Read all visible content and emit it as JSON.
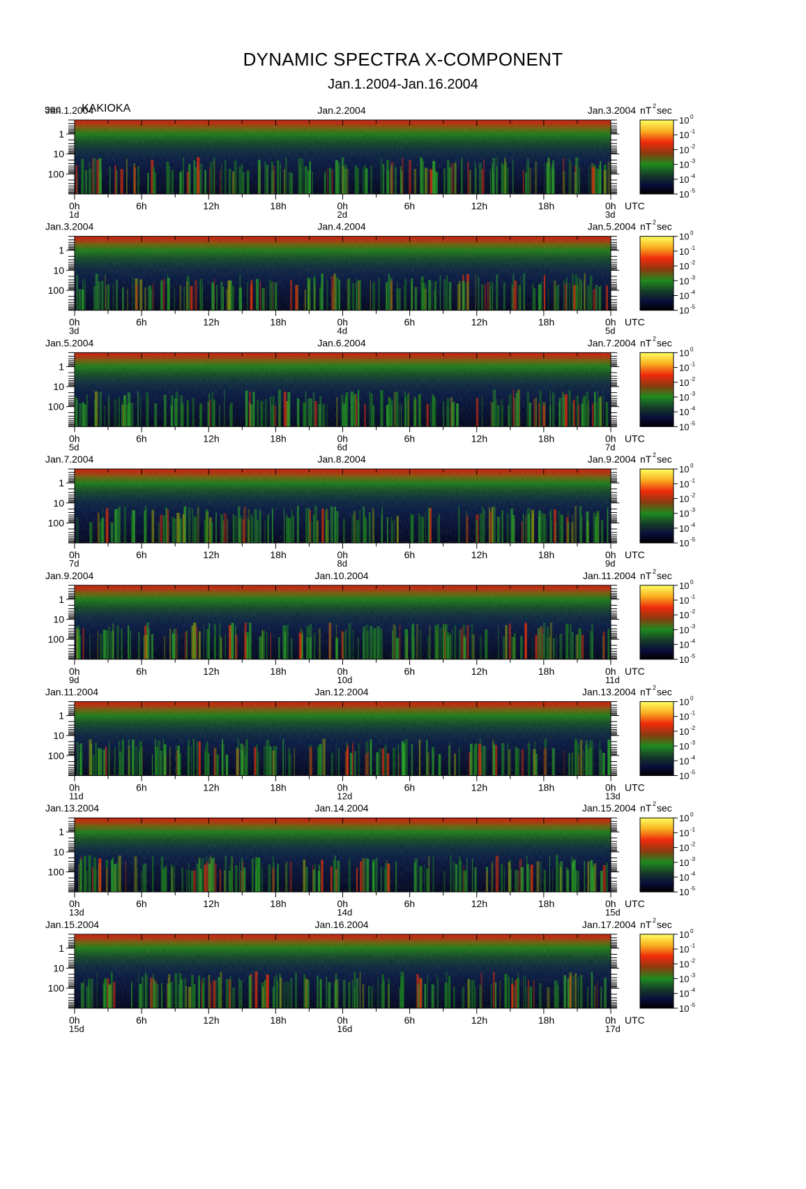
{
  "header": {
    "title": "DYNAMIC SPECTRA X-COMPONENT",
    "subtitle": "Jan.1.2004-Jan.16.2004",
    "unit": "sec",
    "station": "KAKIOKA"
  },
  "chart_data": {
    "type": "heatmap",
    "ylabel": "sec",
    "y_scale": "log",
    "ylim": [
      1000,
      0.2
    ],
    "y_ticks": [
      "1",
      "10",
      "100"
    ],
    "x_tick_labels": [
      "0h",
      "6h",
      "12h",
      "18h",
      "0h",
      "6h",
      "12h",
      "18h",
      "0h"
    ],
    "x_unit": "UTC",
    "colorbar": {
      "unit": "nT",
      "unit_exp": "2",
      "unit_suffix": "sec",
      "scale": "log",
      "range": [
        1e-05,
        1
      ],
      "ticks": [
        {
          "base": "10",
          "exp": "0"
        },
        {
          "base": "10",
          "exp": "-1"
        },
        {
          "base": "10",
          "exp": "-2"
        },
        {
          "base": "10",
          "exp": "-3"
        },
        {
          "base": "10",
          "exp": "-4"
        },
        {
          "base": "10",
          "exp": "-5"
        }
      ],
      "colors": [
        "#000000",
        "#0a0d3a",
        "#1a3a2a",
        "#1f8a1f",
        "#9a4a10",
        "#e0200c",
        "#f8a016",
        "#ffff60"
      ]
    },
    "panels": [
      {
        "date_left": "Jan.1.2004",
        "date_mid": "Jan.2.2004",
        "date_right": "Jan.3.2004",
        "day_start": "1d",
        "day_mid": "2d",
        "day_end": "3d"
      },
      {
        "date_left": "Jan.3.2004",
        "date_mid": "Jan.4.2004",
        "date_right": "Jan.5.2004",
        "day_start": "3d",
        "day_mid": "4d",
        "day_end": "5d"
      },
      {
        "date_left": "Jan.5.2004",
        "date_mid": "Jan.6.2004",
        "date_right": "Jan.7.2004",
        "day_start": "5d",
        "day_mid": "6d",
        "day_end": "7d"
      },
      {
        "date_left": "Jan.7.2004",
        "date_mid": "Jan.8.2004",
        "date_right": "Jan.9.2004",
        "day_start": "7d",
        "day_mid": "8d",
        "day_end": "9d"
      },
      {
        "date_left": "Jan.9.2004",
        "date_mid": "Jan.10.2004",
        "date_right": "Jan.11.2004",
        "day_start": "9d",
        "day_mid": "10d",
        "day_end": "11d"
      },
      {
        "date_left": "Jan.11.2004",
        "date_mid": "Jan.12.2004",
        "date_right": "Jan.13.2004",
        "day_start": "11d",
        "day_mid": "12d",
        "day_end": "13d"
      },
      {
        "date_left": "Jan.13.2004",
        "date_mid": "Jan.14.2004",
        "date_right": "Jan.15.2004",
        "day_start": "13d",
        "day_mid": "14d",
        "day_end": "15d"
      },
      {
        "date_left": "Jan.15.2004",
        "date_mid": "Jan.16.2004",
        "date_right": "Jan.17.2004",
        "day_start": "15d",
        "day_mid": "16d",
        "day_end": "17d"
      }
    ]
  }
}
